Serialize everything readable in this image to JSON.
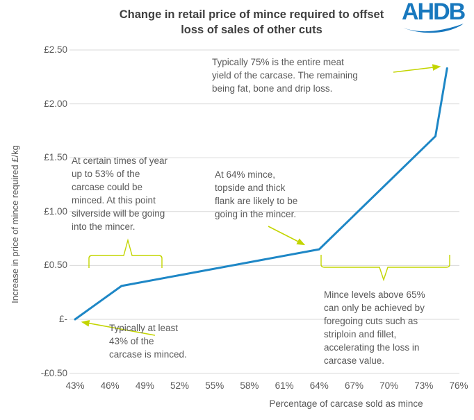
{
  "header": {
    "title_line1": "Change in retail price of mince required to offset",
    "title_line2": "loss of sales of other cuts",
    "logo_text": "AHDB"
  },
  "colors": {
    "line": "#1e87c6",
    "annotation_accent": "#c3d500",
    "gridline": "#d9d9d9",
    "body_text": "#595959",
    "title_text": "#3f3f3f",
    "logo_blue": "#1878be"
  },
  "chart_data": {
    "type": "line",
    "title": "Change in retail price of mince required to offset loss of sales of other cuts",
    "xlabel": "Percentage of carcase sold as mince",
    "ylabel": "Increase in price of mince required £/kg",
    "xlim": [
      43,
      76
    ],
    "ylim": [
      -0.5,
      2.5
    ],
    "grid": true,
    "legend": false,
    "series": [
      {
        "name": "Increase in price of mince required £/kg",
        "points": [
          [
            43,
            0.0
          ],
          [
            47,
            0.31
          ],
          [
            64,
            0.65
          ],
          [
            74,
            1.7
          ],
          [
            75,
            2.33
          ]
        ]
      }
    ],
    "y_ticks": [
      {
        "value": 2.5,
        "label": "£2.50"
      },
      {
        "value": 2.0,
        "label": "£2.00"
      },
      {
        "value": 1.5,
        "label": "£1.50"
      },
      {
        "value": 1.0,
        "label": "£1.00"
      },
      {
        "value": 0.5,
        "label": "£0.50"
      },
      {
        "value": 0.0,
        "label": "£-"
      },
      {
        "value": -0.5,
        "label": "-£0.50"
      }
    ],
    "x_ticks": [
      {
        "value": 43,
        "label": "43%"
      },
      {
        "value": 46,
        "label": "46%"
      },
      {
        "value": 49,
        "label": "49%"
      },
      {
        "value": 52,
        "label": "52%"
      },
      {
        "value": 55,
        "label": "55%"
      },
      {
        "value": 58,
        "label": "58%"
      },
      {
        "value": 61,
        "label": "61%"
      },
      {
        "value": 64,
        "label": "64%"
      },
      {
        "value": 67,
        "label": "67%"
      },
      {
        "value": 70,
        "label": "70%"
      },
      {
        "value": 73,
        "label": "73%"
      },
      {
        "value": 76,
        "label": "76%"
      }
    ]
  },
  "axes": {
    "y_title": "Increase in price of mince required £/kg",
    "x_title": "Percentage of carcase sold as mince"
  },
  "annotations": {
    "a75": {
      "lines": [
        "Typically 75% is the entire meat",
        "yield of the carcase. The remaining",
        "being fat, bone and drip loss."
      ]
    },
    "a53": {
      "lines": [
        "At certain times of year",
        "up to 53% of the",
        "carcase could be",
        "minced. At this point",
        "silverside will be going",
        "into the mincer."
      ]
    },
    "a64": {
      "lines": [
        "At 64% mince,",
        "topside and thick",
        "flank are likely to be",
        "going in the mincer."
      ]
    },
    "a43": {
      "lines": [
        "Typically at least",
        "43% of the",
        "carcase is minced."
      ]
    },
    "a65": {
      "lines": [
        "Mince levels above 65%",
        "can only be achieved by",
        "foregoing cuts such as",
        "striploin and fillet,",
        "accelerating the loss in",
        "carcase value."
      ]
    }
  }
}
